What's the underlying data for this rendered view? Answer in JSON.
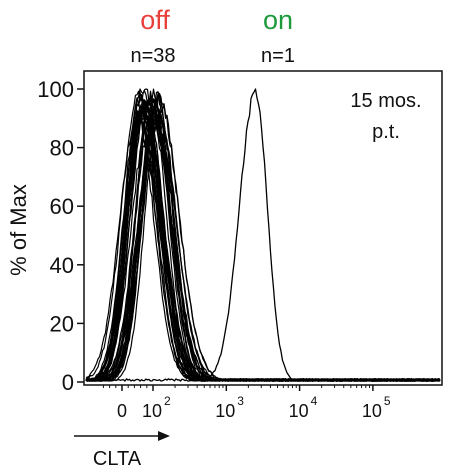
{
  "chart_data": {
    "type": "histogram",
    "xlabel": "CLTA",
    "ylabel": "% of Max",
    "x_scale": "biexponential",
    "x_ticks": [
      {
        "value": 0,
        "label": "0"
      },
      {
        "value": 100,
        "label": "10",
        "exponent": "2"
      },
      {
        "value": 1000,
        "label": "10",
        "exponent": "3"
      },
      {
        "value": 10000,
        "label": "10",
        "exponent": "4"
      },
      {
        "value": 100000,
        "label": "10",
        "exponent": "5"
      }
    ],
    "y_ticks": [
      {
        "value": 0,
        "label": "0"
      },
      {
        "value": 20,
        "label": "20"
      },
      {
        "value": 40,
        "label": "40"
      },
      {
        "value": 60,
        "label": "60"
      },
      {
        "value": 80,
        "label": "80"
      },
      {
        "value": 100,
        "label": "100"
      }
    ],
    "ylim": [
      0,
      100
    ],
    "annotation_lines": [
      "15 mos.",
      "p.t."
    ],
    "groups": [
      {
        "name": "off",
        "count_label": "n=38",
        "color": "#e8403a",
        "n": 38,
        "peak_x": 85,
        "peak_y": 99
      },
      {
        "name": "on",
        "count_label": "n=1",
        "color": "#1e9a3c",
        "n": 1,
        "peak_x": 2500,
        "peak_y": 99
      }
    ],
    "curve_color": "#000000"
  }
}
